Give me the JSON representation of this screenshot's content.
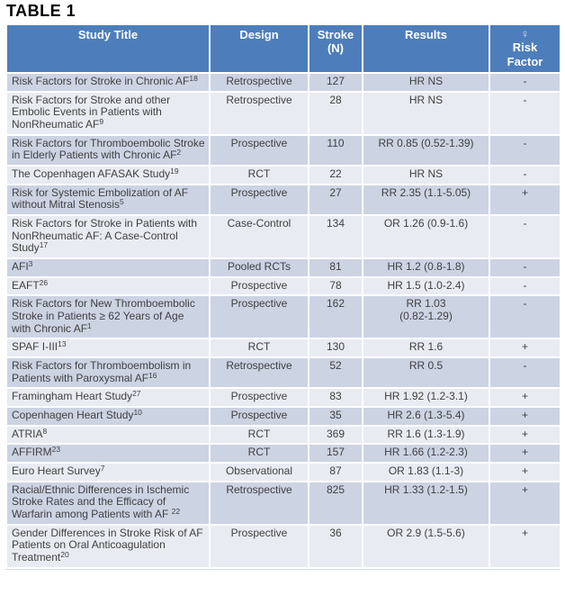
{
  "page_title": "TABLE 1",
  "colors": {
    "header_bg": "#4D7EBB",
    "header_text": "#FFFFFF",
    "row_odd_bg": "#CCD3E3",
    "row_even_bg": "#E9EBF3",
    "body_text": "#404040",
    "cell_border": "#FFFFFF",
    "female_symbol": "#CFE0F1"
  },
  "table": {
    "headers": [
      {
        "label": "Study Title"
      },
      {
        "label": "Design"
      },
      {
        "label": "Stroke (N)"
      },
      {
        "label": "Results"
      },
      {
        "symbol": "♀",
        "label": "Risk Factor"
      }
    ],
    "rows": [
      {
        "title": "Risk Factors for Stroke in Chronic AF",
        "ref": "18",
        "design": "Retrospective",
        "stroke_n": "127",
        "results": "HR NS",
        "risk": "-"
      },
      {
        "title": "Risk Factors for Stroke and other Embolic Events in Patients with NonRheumatic AF",
        "ref": "9",
        "design": "Retrospective",
        "stroke_n": "28",
        "results": "HR NS",
        "risk": "-"
      },
      {
        "title": "Risk Factors for Thromboembolic Stroke in Elderly Patients with Chronic AF",
        "ref": "2",
        "design": "Prospective",
        "stroke_n": "110",
        "results": "RR 0.85 (0.52-1.39)",
        "risk": "-"
      },
      {
        "title": "The Copenhagen AFASAK Study",
        "ref": "19",
        "design": "RCT",
        "stroke_n": "22",
        "results": "HR NS",
        "risk": "-"
      },
      {
        "title": "Risk for Systemic Embolization of AF without Mitral Stenosis",
        "ref": "5",
        "design": "Prospective",
        "stroke_n": "27",
        "results": "RR 2.35 (1.1-5.05)",
        "risk": "+"
      },
      {
        "title": "Risk Factors for Stroke in Patients with NonRheumatic AF: A Case-Control Study",
        "ref": "17",
        "design": "Case-Control",
        "stroke_n": "134",
        "results": "OR 1.26 (0.9-1.6)",
        "risk": "-"
      },
      {
        "title": "AFI",
        "ref": "3",
        "design": "Pooled RCTs",
        "stroke_n": "81",
        "results": "HR 1.2 (0.8-1.8)",
        "risk": "-"
      },
      {
        "title": "EAFT",
        "ref": "26",
        "design": "Prospective",
        "stroke_n": "78",
        "results": "HR 1.5 (1.0-2.4)",
        "risk": "-"
      },
      {
        "title": "Risk Factors for New Thromboembolic Stroke in Patients ≥ 62 Years of Age with Chronic AF",
        "ref": "1",
        "design": "Prospective",
        "stroke_n": "162",
        "results": "RR 1.03\n(0.82-1.29)",
        "risk": "-"
      },
      {
        "title": "SPAF I-III",
        "ref": "13",
        "design": "RCT",
        "stroke_n": "130",
        "results": "RR 1.6",
        "risk": "+"
      },
      {
        "title": "Risk Factors for Thromboembolism in Patients with Paroxysmal AF",
        "ref": "16",
        "design": "Retrospective",
        "stroke_n": "52",
        "results": "RR  0.5",
        "risk": "-"
      },
      {
        "title": "Framingham Heart Study",
        "ref": "27",
        "design": "Prospective",
        "stroke_n": "83",
        "results": "HR 1.92 (1.2-3.1)",
        "risk": "+"
      },
      {
        "title": "Copenhagen Heart Study",
        "ref": "10",
        "design": "Prospective",
        "stroke_n": "35",
        "results": "HR 2.6 (1.3-5.4)",
        "risk": "+"
      },
      {
        "title": "ATRIA",
        "ref": "8",
        "design": "RCT",
        "stroke_n": "369",
        "results": "RR 1.6 (1.3-1.9)",
        "risk": "+"
      },
      {
        "title": "AFFIRM",
        "ref": "23",
        "design": "RCT",
        "stroke_n": "157",
        "results": "HR 1.66 (1.2-2.3)",
        "risk": "+"
      },
      {
        "title": "Euro Heart Survey",
        "ref": "7",
        "design": "Observational",
        "stroke_n": "87",
        "results": "OR 1.83 (1.1-3)",
        "risk": "+"
      },
      {
        "title": "Racial/Ethnic Differences in Ischemic Stroke Rates and the Efficacy of Warfarin among Patients with AF ",
        "ref": "22",
        "design": "Retrospective",
        "stroke_n": "825",
        "results": "HR 1.33 (1.2-1.5)",
        "risk": "+"
      },
      {
        "title": "Gender Differences in Stroke Risk of AF Patients on Oral Anticoagulation Treatment",
        "ref": "20",
        "design": "Prospective",
        "stroke_n": "36",
        "results": "OR 2.9 (1.5-5.6)",
        "risk": "+"
      }
    ]
  }
}
